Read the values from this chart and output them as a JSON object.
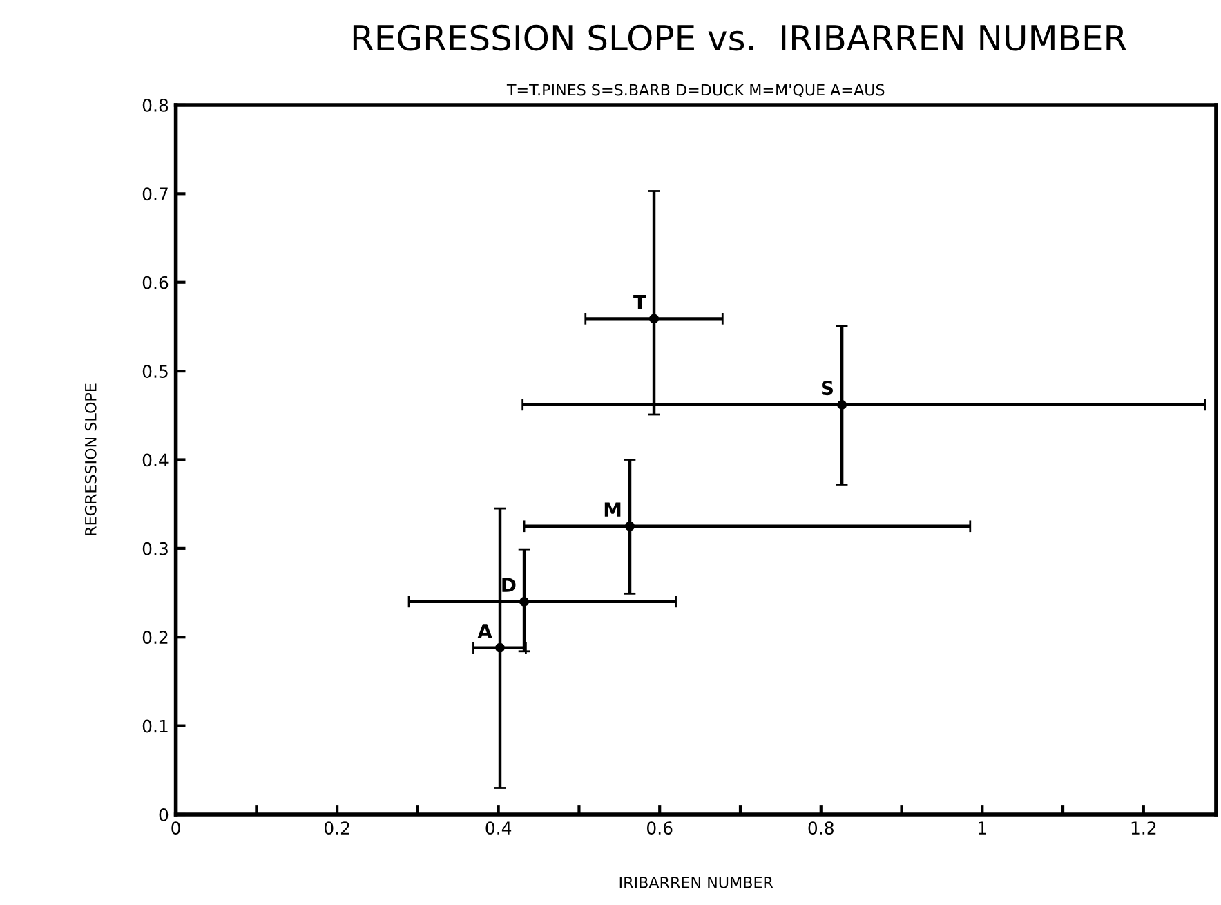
{
  "chart_data": {
    "type": "scatter",
    "title": "REGRESSION SLOPE vs.  IRIBARREN NUMBER",
    "subtitle": "T=T.PINES S=S.BARB D=DUCK M=M'QUE A=AUS",
    "xlabel": "IRIBARREN NUMBER",
    "ylabel": "REGRESSION SLOPE",
    "x": [
      0.593,
      0.826,
      0.563,
      0.432,
      0.402
    ],
    "values": [
      0.559,
      0.462,
      0.325,
      0.24,
      0.188
    ],
    "errors": [
      [
        0.451,
        0.703
      ],
      [
        0.372,
        0.551
      ],
      [
        0.249,
        0.4
      ],
      [
        0.184,
        0.299
      ],
      [
        0.03,
        0.345
      ]
    ],
    "xerrors": [
      [
        0.508,
        0.678
      ],
      [
        0.43,
        1.276
      ],
      [
        0.432,
        0.985
      ],
      [
        0.289,
        0.62
      ],
      [
        0.369,
        0.434
      ]
    ],
    "value_labels": [
      "T",
      "S",
      "M",
      "D",
      "A"
    ],
    "color": "#000000",
    "marker": "circle",
    "grid": false,
    "legend": false,
    "xlim": [
      0,
      1.29
    ],
    "ylim": [
      0,
      0.8
    ],
    "xticks": [
      0,
      {
        "value": 0.1,
        "label": null
      },
      0.2,
      {
        "value": 0.3,
        "label": null
      },
      0.4,
      {
        "value": 0.5,
        "label": null
      },
      0.6,
      {
        "value": 0.7,
        "label": null
      },
      0.8,
      {
        "value": 0.9,
        "label": null
      },
      1,
      {
        "value": 1.1,
        "label": null
      },
      1.2
    ],
    "yticks": [
      0,
      0.1,
      0.2,
      0.3,
      0.4,
      0.5,
      0.6,
      0.7,
      0.8
    ]
  }
}
